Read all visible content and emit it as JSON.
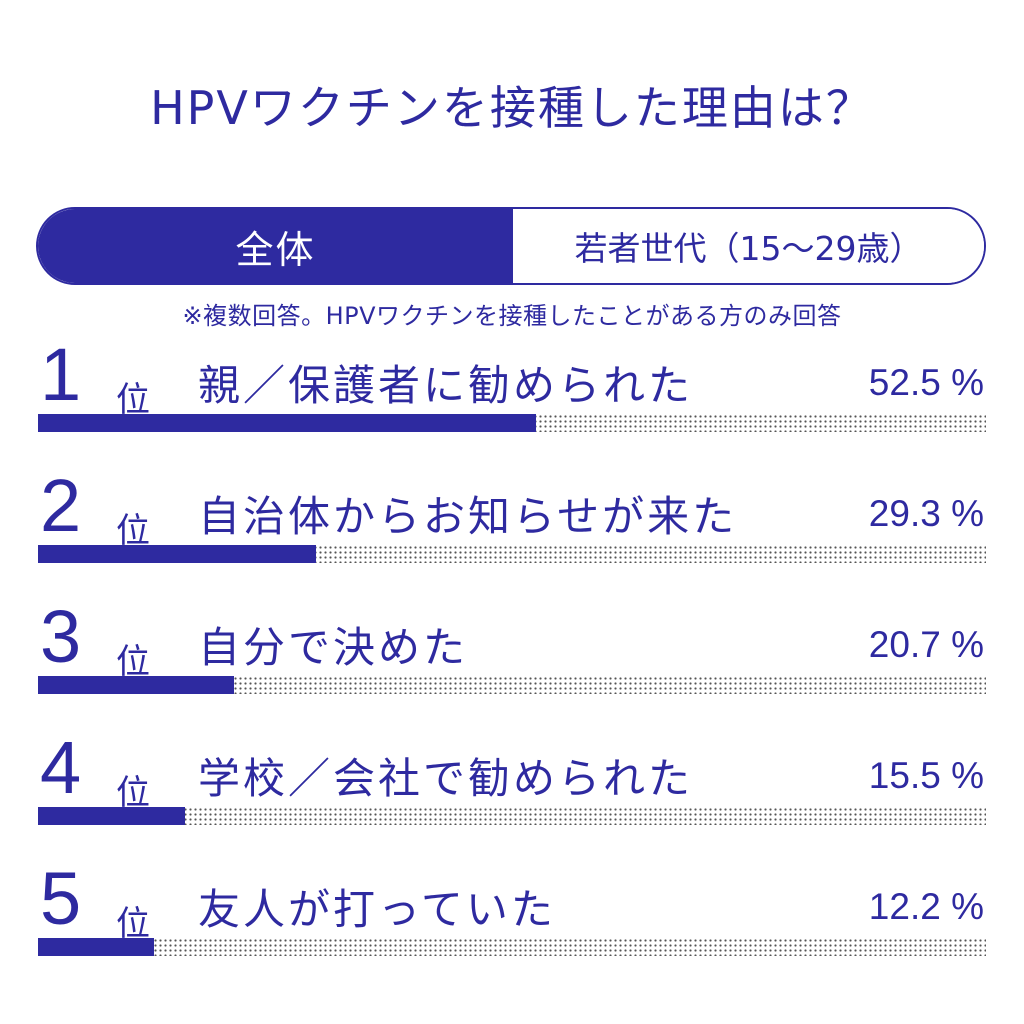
{
  "title": "HPVワクチンを接種した理由は？",
  "tabs": [
    {
      "label": "全体",
      "active": true
    },
    {
      "label": "若者世代（15～29歳）",
      "active": false
    }
  ],
  "note": "※複数回答。HPVワクチンを接種したことがある方のみ回答",
  "colors": {
    "accent": "#2e2aa0",
    "track_dots": "#555555",
    "background": "#ffffff"
  },
  "rank_unit": "位",
  "chart_data": {
    "type": "bar",
    "categories": [
      "親／保護者に勧められた",
      "自治体からお知らせが来た",
      "自分で決めた",
      "学校／会社で勧められた",
      "友人が打っていた"
    ],
    "ranks": [
      "1",
      "2",
      "3",
      "4",
      "5"
    ],
    "values": [
      52.5,
      29.3,
      20.7,
      15.5,
      12.2
    ],
    "value_labels": [
      "52.5 %",
      "29.3 %",
      "20.7 %",
      "15.5 %",
      "12.2 %"
    ],
    "unit": "%",
    "xlim": [
      0,
      100
    ],
    "orientation": "horizontal"
  }
}
